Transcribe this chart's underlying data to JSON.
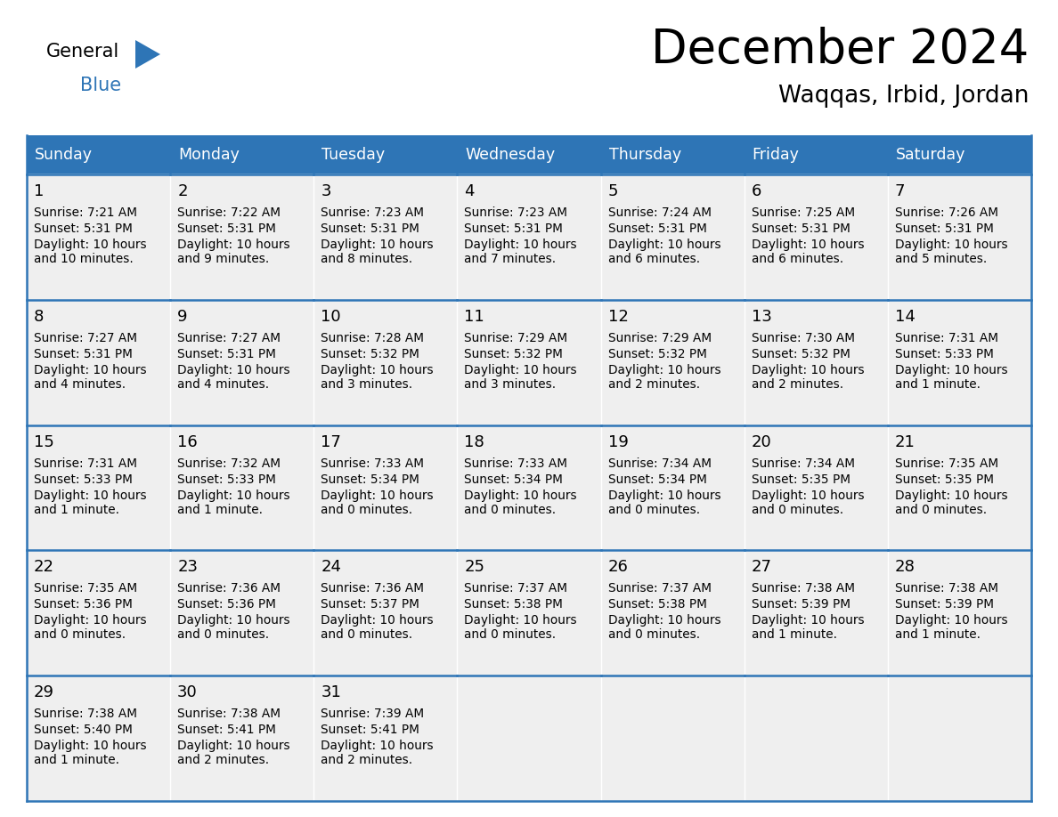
{
  "title": "December 2024",
  "subtitle": "Waqqas, Irbid, Jordan",
  "header_color": "#2E75B6",
  "header_text_color": "#FFFFFF",
  "cell_bg_color": "#EFEFEF",
  "cell_alt_bg": "#FFFFFF",
  "grid_line_color": "#2E75B6",
  "days_of_week": [
    "Sunday",
    "Monday",
    "Tuesday",
    "Wednesday",
    "Thursday",
    "Friday",
    "Saturday"
  ],
  "weeks": [
    [
      {
        "day": 1,
        "sunrise": "7:21 AM",
        "sunset": "5:31 PM",
        "daylight_h": "10 hours",
        "daylight_m": "and 10 minutes."
      },
      {
        "day": 2,
        "sunrise": "7:22 AM",
        "sunset": "5:31 PM",
        "daylight_h": "10 hours",
        "daylight_m": "and 9 minutes."
      },
      {
        "day": 3,
        "sunrise": "7:23 AM",
        "sunset": "5:31 PM",
        "daylight_h": "10 hours",
        "daylight_m": "and 8 minutes."
      },
      {
        "day": 4,
        "sunrise": "7:23 AM",
        "sunset": "5:31 PM",
        "daylight_h": "10 hours",
        "daylight_m": "and 7 minutes."
      },
      {
        "day": 5,
        "sunrise": "7:24 AM",
        "sunset": "5:31 PM",
        "daylight_h": "10 hours",
        "daylight_m": "and 6 minutes."
      },
      {
        "day": 6,
        "sunrise": "7:25 AM",
        "sunset": "5:31 PM",
        "daylight_h": "10 hours",
        "daylight_m": "and 6 minutes."
      },
      {
        "day": 7,
        "sunrise": "7:26 AM",
        "sunset": "5:31 PM",
        "daylight_h": "10 hours",
        "daylight_m": "and 5 minutes."
      }
    ],
    [
      {
        "day": 8,
        "sunrise": "7:27 AM",
        "sunset": "5:31 PM",
        "daylight_h": "10 hours",
        "daylight_m": "and 4 minutes."
      },
      {
        "day": 9,
        "sunrise": "7:27 AM",
        "sunset": "5:31 PM",
        "daylight_h": "10 hours",
        "daylight_m": "and 4 minutes."
      },
      {
        "day": 10,
        "sunrise": "7:28 AM",
        "sunset": "5:32 PM",
        "daylight_h": "10 hours",
        "daylight_m": "and 3 minutes."
      },
      {
        "day": 11,
        "sunrise": "7:29 AM",
        "sunset": "5:32 PM",
        "daylight_h": "10 hours",
        "daylight_m": "and 3 minutes."
      },
      {
        "day": 12,
        "sunrise": "7:29 AM",
        "sunset": "5:32 PM",
        "daylight_h": "10 hours",
        "daylight_m": "and 2 minutes."
      },
      {
        "day": 13,
        "sunrise": "7:30 AM",
        "sunset": "5:32 PM",
        "daylight_h": "10 hours",
        "daylight_m": "and 2 minutes."
      },
      {
        "day": 14,
        "sunrise": "7:31 AM",
        "sunset": "5:33 PM",
        "daylight_h": "10 hours",
        "daylight_m": "and 1 minute."
      }
    ],
    [
      {
        "day": 15,
        "sunrise": "7:31 AM",
        "sunset": "5:33 PM",
        "daylight_h": "10 hours",
        "daylight_m": "and 1 minute."
      },
      {
        "day": 16,
        "sunrise": "7:32 AM",
        "sunset": "5:33 PM",
        "daylight_h": "10 hours",
        "daylight_m": "and 1 minute."
      },
      {
        "day": 17,
        "sunrise": "7:33 AM",
        "sunset": "5:34 PM",
        "daylight_h": "10 hours",
        "daylight_m": "and 0 minutes."
      },
      {
        "day": 18,
        "sunrise": "7:33 AM",
        "sunset": "5:34 PM",
        "daylight_h": "10 hours",
        "daylight_m": "and 0 minutes."
      },
      {
        "day": 19,
        "sunrise": "7:34 AM",
        "sunset": "5:34 PM",
        "daylight_h": "10 hours",
        "daylight_m": "and 0 minutes."
      },
      {
        "day": 20,
        "sunrise": "7:34 AM",
        "sunset": "5:35 PM",
        "daylight_h": "10 hours",
        "daylight_m": "and 0 minutes."
      },
      {
        "day": 21,
        "sunrise": "7:35 AM",
        "sunset": "5:35 PM",
        "daylight_h": "10 hours",
        "daylight_m": "and 0 minutes."
      }
    ],
    [
      {
        "day": 22,
        "sunrise": "7:35 AM",
        "sunset": "5:36 PM",
        "daylight_h": "10 hours",
        "daylight_m": "and 0 minutes."
      },
      {
        "day": 23,
        "sunrise": "7:36 AM",
        "sunset": "5:36 PM",
        "daylight_h": "10 hours",
        "daylight_m": "and 0 minutes."
      },
      {
        "day": 24,
        "sunrise": "7:36 AM",
        "sunset": "5:37 PM",
        "daylight_h": "10 hours",
        "daylight_m": "and 0 minutes."
      },
      {
        "day": 25,
        "sunrise": "7:37 AM",
        "sunset": "5:38 PM",
        "daylight_h": "10 hours",
        "daylight_m": "and 0 minutes."
      },
      {
        "day": 26,
        "sunrise": "7:37 AM",
        "sunset": "5:38 PM",
        "daylight_h": "10 hours",
        "daylight_m": "and 0 minutes."
      },
      {
        "day": 27,
        "sunrise": "7:38 AM",
        "sunset": "5:39 PM",
        "daylight_h": "10 hours",
        "daylight_m": "and 1 minute."
      },
      {
        "day": 28,
        "sunrise": "7:38 AM",
        "sunset": "5:39 PM",
        "daylight_h": "10 hours",
        "daylight_m": "and 1 minute."
      }
    ],
    [
      {
        "day": 29,
        "sunrise": "7:38 AM",
        "sunset": "5:40 PM",
        "daylight_h": "10 hours",
        "daylight_m": "and 1 minute."
      },
      {
        "day": 30,
        "sunrise": "7:38 AM",
        "sunset": "5:41 PM",
        "daylight_h": "10 hours",
        "daylight_m": "and 2 minutes."
      },
      {
        "day": 31,
        "sunrise": "7:39 AM",
        "sunset": "5:41 PM",
        "daylight_h": "10 hours",
        "daylight_m": "and 2 minutes."
      },
      null,
      null,
      null,
      null
    ]
  ]
}
